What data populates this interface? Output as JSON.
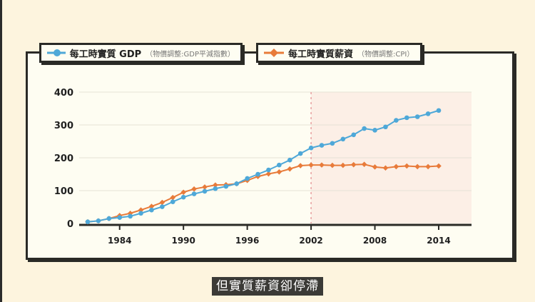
{
  "legend": [
    {
      "label": "每工時實質 GDP",
      "note": "（物價調整:GDP平減指數）",
      "color": "#4ea8d8",
      "marker": "circle"
    },
    {
      "label": "每工時實質薪資",
      "note": "（物價調整:CPI）",
      "color": "#e87b3a",
      "marker": "diamond"
    }
  ],
  "caption": "但實質薪資卻停滯",
  "colors": {
    "background": "#fdf4de",
    "plot_bg": "#fefdf2",
    "highlight_bg": "#fcefe6",
    "frame": "#2a2a26",
    "gdp": "#4ea8d8",
    "wage": "#e87b3a",
    "divider": "#e8a0a0"
  },
  "chart_data": {
    "type": "line",
    "title": "",
    "xlabel": "",
    "ylabel": "",
    "x": [
      1981,
      1982,
      1983,
      1984,
      1985,
      1986,
      1987,
      1988,
      1989,
      1990,
      1991,
      1992,
      1993,
      1994,
      1995,
      1996,
      1997,
      1998,
      1999,
      2000,
      2001,
      2002,
      2003,
      2004,
      2005,
      2006,
      2007,
      2008,
      2009,
      2010,
      2011,
      2012,
      2013,
      2014
    ],
    "series": [
      {
        "name": "每工時實質 GDP（物價調整:GDP平減指數）",
        "color": "#4ea8d8",
        "values": [
          5,
          8,
          15,
          18,
          22,
          31,
          41,
          51,
          66,
          80,
          90,
          98,
          106,
          113,
          121,
          137,
          150,
          163,
          178,
          193,
          213,
          230,
          238,
          244,
          257,
          270,
          289,
          284,
          294,
          314,
          322,
          325,
          334,
          344
        ]
      },
      {
        "name": "每工時實質薪資（物價調整:CPI）",
        "color": "#e87b3a",
        "values": [
          5,
          8,
          15,
          24,
          31,
          41,
          52,
          64,
          79,
          95,
          105,
          111,
          117,
          118,
          121,
          131,
          143,
          151,
          157,
          166,
          176,
          178,
          178,
          177,
          177,
          179,
          180,
          172,
          169,
          173,
          175,
          173,
          173,
          175
        ]
      }
    ],
    "x_ticks": [
      "1984",
      "1990",
      "1996",
      "2002",
      "2008",
      "2014"
    ],
    "y_ticks": [
      "0",
      "100",
      "200",
      "300",
      "400"
    ],
    "ylim": [
      0,
      400
    ],
    "xlim": [
      1980,
      2016
    ],
    "grid": "horizontal",
    "annotations": [
      {
        "type": "vertical-dashed-line",
        "x": 2002
      },
      {
        "type": "shaded-region",
        "from": 2002,
        "to": 2016
      }
    ],
    "legend_position": "top"
  }
}
